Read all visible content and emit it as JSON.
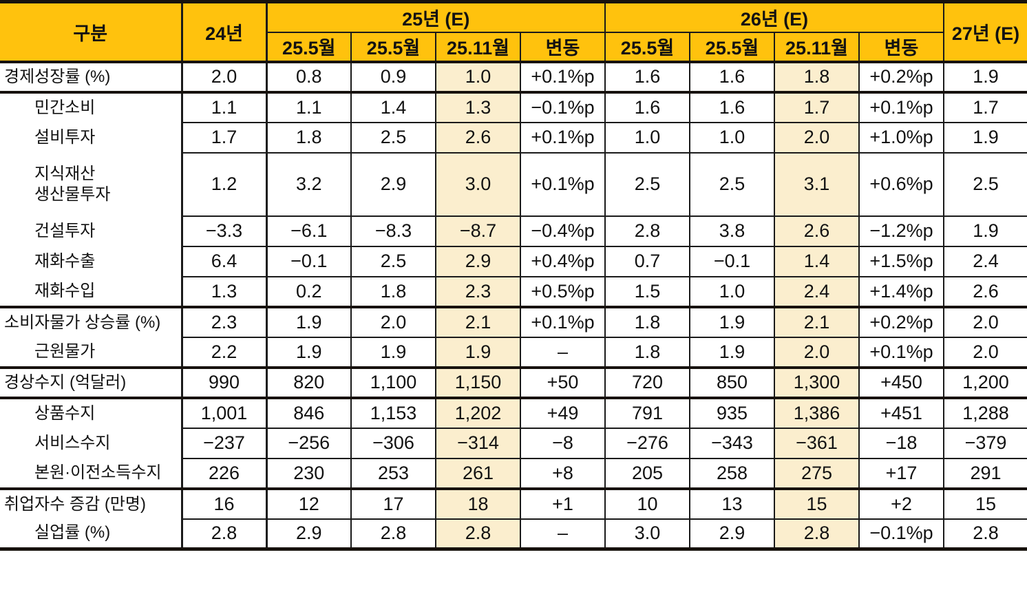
{
  "table": {
    "header": {
      "category": "구분",
      "year24": "24년",
      "group25": "25년 (E)",
      "group26": "26년 (E)",
      "year27": "27년 (E)",
      "sub25": [
        "25.5월",
        "25.5월",
        "25.11월",
        "변동"
      ],
      "sub26": [
        "25.5월",
        "25.5월",
        "25.11월",
        "변동"
      ]
    },
    "rows": [
      {
        "label": "경제성장률 (%)",
        "indent": false,
        "section": true,
        "tall": false,
        "values": [
          "2.0",
          "0.8",
          "0.9",
          "1.0",
          "+0.1%p",
          "1.6",
          "1.6",
          "1.8",
          "+0.2%p",
          "1.9"
        ]
      },
      {
        "label": "민간소비",
        "indent": true,
        "section": true,
        "tall": false,
        "values": [
          "1.1",
          "1.1",
          "1.4",
          "1.3",
          "−0.1%p",
          "1.6",
          "1.6",
          "1.7",
          "+0.1%p",
          "1.7"
        ]
      },
      {
        "label": "설비투자",
        "indent": true,
        "section": false,
        "tall": false,
        "values": [
          "1.7",
          "1.8",
          "2.5",
          "2.6",
          "+0.1%p",
          "1.0",
          "1.0",
          "2.0",
          "+1.0%p",
          "1.9"
        ]
      },
      {
        "label": "지식재산\n생산물투자",
        "indent": true,
        "section": false,
        "tall": true,
        "values": [
          "1.2",
          "3.2",
          "2.9",
          "3.0",
          "+0.1%p",
          "2.5",
          "2.5",
          "3.1",
          "+0.6%p",
          "2.5"
        ]
      },
      {
        "label": "건설투자",
        "indent": true,
        "section": false,
        "tall": false,
        "values": [
          "−3.3",
          "−6.1",
          "−8.3",
          "−8.7",
          "−0.4%p",
          "2.8",
          "3.8",
          "2.6",
          "−1.2%p",
          "1.9"
        ]
      },
      {
        "label": "재화수출",
        "indent": true,
        "section": false,
        "tall": false,
        "values": [
          "6.4",
          "−0.1",
          "2.5",
          "2.9",
          "+0.4%p",
          "0.7",
          "−0.1",
          "1.4",
          "+1.5%p",
          "2.4"
        ]
      },
      {
        "label": "재화수입",
        "indent": true,
        "section": false,
        "tall": false,
        "values": [
          "1.3",
          "0.2",
          "1.8",
          "2.3",
          "+0.5%p",
          "1.5",
          "1.0",
          "2.4",
          "+1.4%p",
          "2.6"
        ]
      },
      {
        "label": "소비자물가 상승률 (%)",
        "indent": false,
        "section": true,
        "tall": false,
        "values": [
          "2.3",
          "1.9",
          "2.0",
          "2.1",
          "+0.1%p",
          "1.8",
          "1.9",
          "2.1",
          "+0.2%p",
          "2.0"
        ]
      },
      {
        "label": "근원물가",
        "indent": true,
        "section": false,
        "tall": false,
        "values": [
          "2.2",
          "1.9",
          "1.9",
          "1.9",
          "–",
          "1.8",
          "1.9",
          "2.0",
          "+0.1%p",
          "2.0"
        ]
      },
      {
        "label": "경상수지 (억달러)",
        "indent": false,
        "section": true,
        "tall": false,
        "values": [
          "990",
          "820",
          "1,100",
          "1,150",
          "+50",
          "720",
          "850",
          "1,300",
          "+450",
          "1,200"
        ]
      },
      {
        "label": "상품수지",
        "indent": true,
        "section": true,
        "tall": false,
        "values": [
          "1,001",
          "846",
          "1,153",
          "1,202",
          "+49",
          "791",
          "935",
          "1,386",
          "+451",
          "1,288"
        ]
      },
      {
        "label": "서비스수지",
        "indent": true,
        "section": false,
        "tall": false,
        "values": [
          "−237",
          "−256",
          "−306",
          "−314",
          "−8",
          "−276",
          "−343",
          "−361",
          "−18",
          "−379"
        ]
      },
      {
        "label": "본원·이전소득수지",
        "indent": true,
        "section": false,
        "tall": false,
        "values": [
          "226",
          "230",
          "253",
          "261",
          "+8",
          "205",
          "258",
          "275",
          "+17",
          "291"
        ]
      },
      {
        "label": "취업자수 증감 (만명)",
        "indent": false,
        "section": true,
        "tall": false,
        "values": [
          "16",
          "12",
          "17",
          "18",
          "+1",
          "10",
          "13",
          "15",
          "+2",
          "15"
        ]
      },
      {
        "label": "실업률 (%)",
        "indent": true,
        "section": false,
        "tall": false,
        "values": [
          "2.8",
          "2.9",
          "2.8",
          "2.8",
          "–",
          "3.0",
          "2.9",
          "2.8",
          "−0.1%p",
          "2.8"
        ]
      }
    ]
  },
  "colors": {
    "header_bg": "#FFC20D",
    "highlight_bg": "#FBEECE",
    "border": "#1A1A1A",
    "border_strong": "#17120D",
    "text": "#121212"
  }
}
